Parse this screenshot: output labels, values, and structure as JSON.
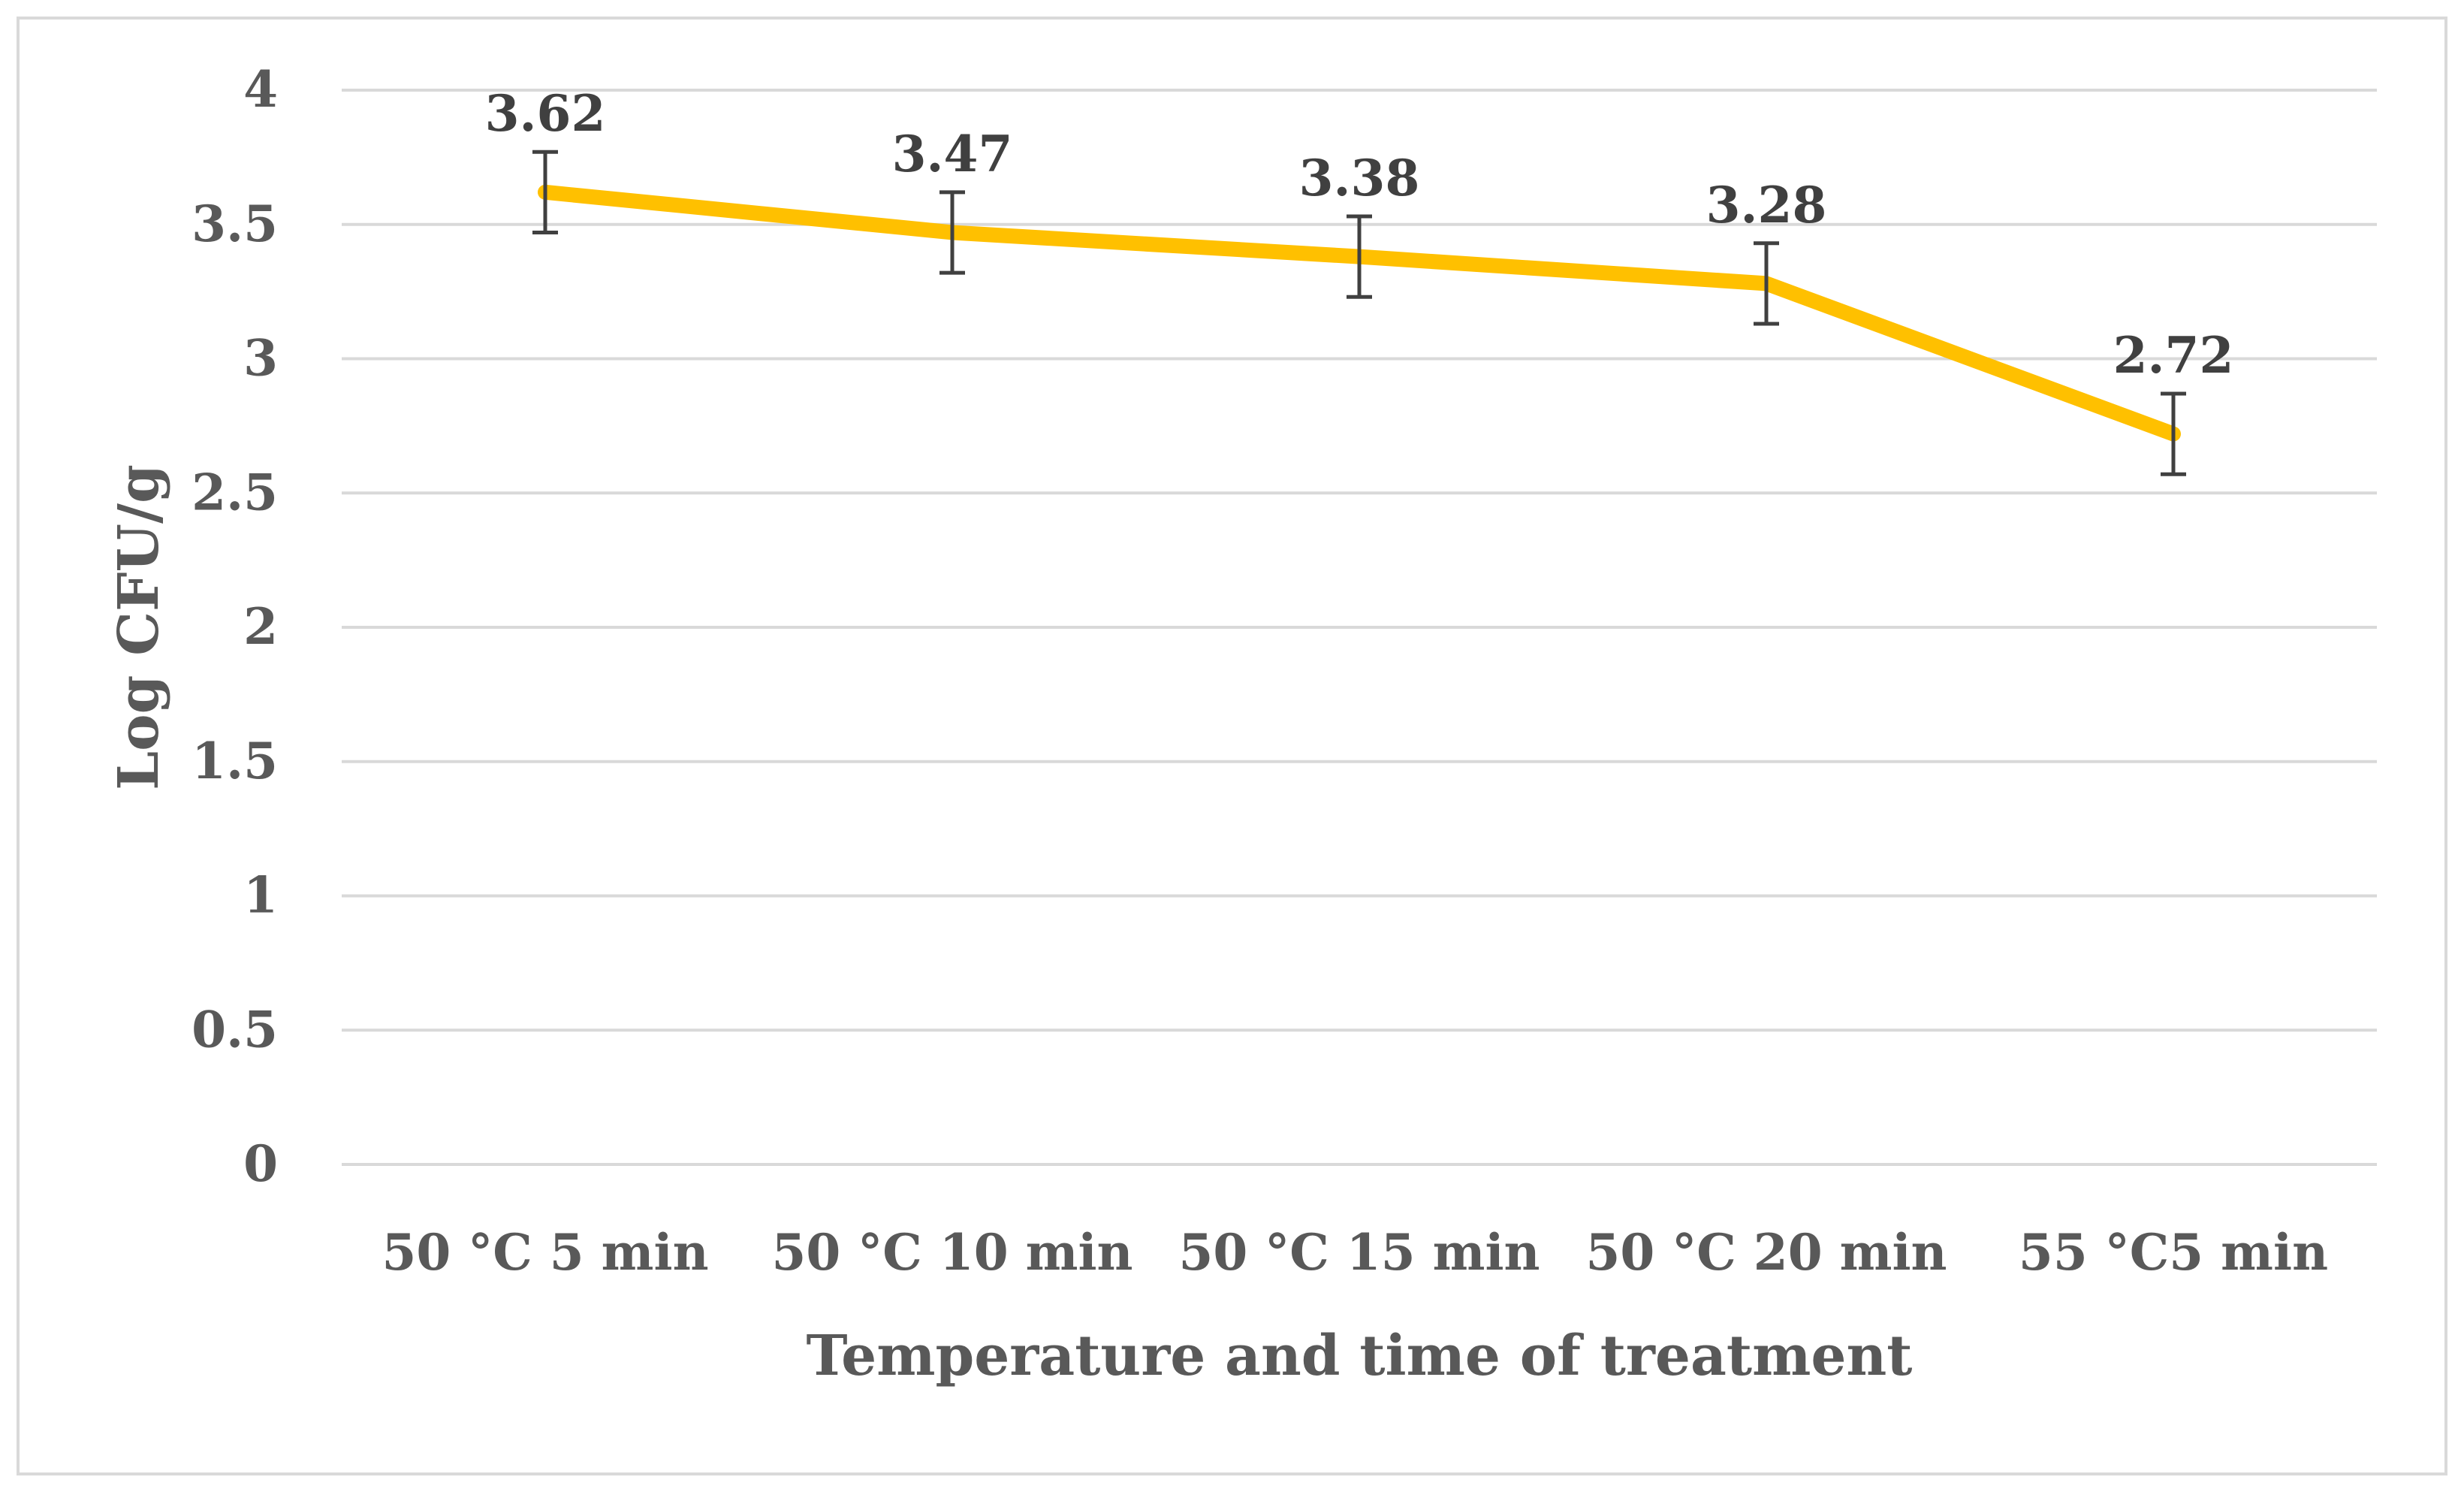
{
  "chart_data": {
    "type": "line",
    "categories": [
      "50 °C 5 min",
      "50 °C 10 min",
      "50 °C 15 min",
      "50 °C 20 min",
      "55 °C5 min"
    ],
    "series": [
      {
        "values": [
          3.62,
          3.47,
          3.38,
          3.28,
          2.72
        ],
        "error": [
          0.15,
          0.15,
          0.15,
          0.15,
          0.15
        ],
        "color": "#FFC000"
      }
    ],
    "data_labels": [
      "3.62",
      "3.47",
      "3.38",
      "3.28",
      "2.72"
    ],
    "ylim": [
      0,
      4
    ],
    "yticks": [
      0,
      0.5,
      1,
      1.5,
      2,
      2.5,
      3,
      3.5,
      4
    ],
    "ytick_labels": [
      "0",
      "0.5",
      "1",
      "1.5",
      "2",
      "2.5",
      "3",
      "3.5",
      "4"
    ],
    "xlabel": "Temperature and time of treatment",
    "ylabel": "Log CFU/g",
    "grid": true,
    "legend": "none",
    "colors": {
      "line": "#FFC000",
      "grid": "#D9D9D9",
      "error_bar": "#404040",
      "text": "#595959",
      "border": "#D9D9D9"
    }
  }
}
